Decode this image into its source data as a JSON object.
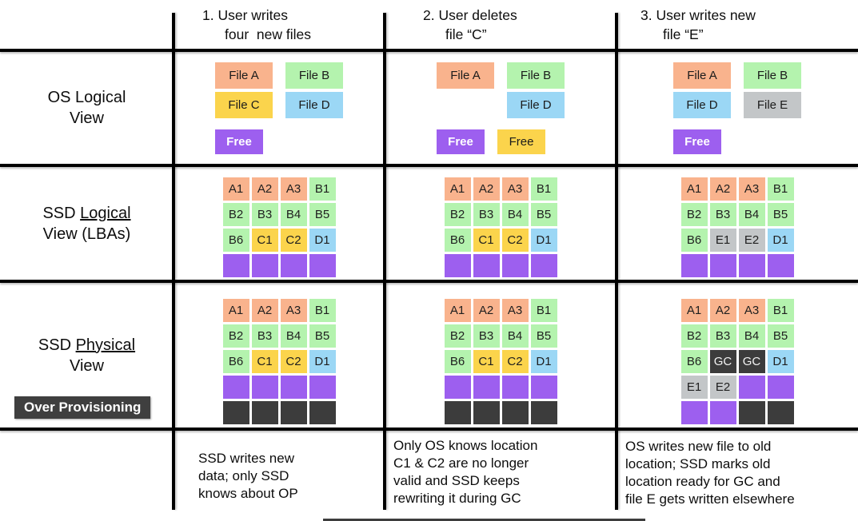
{
  "colors": {
    "salmon": "#F9B38D",
    "green": "#B4F3AE",
    "yellow": "#FBD44C",
    "blue": "#9BD7F5",
    "purple": "#9D5FEF",
    "gray": "#C3C6C8",
    "dark": "#3C3C3C",
    "none": "transparent"
  },
  "row_labels": {
    "os": {
      "line1": "OS Logical",
      "line2": "View"
    },
    "logical": {
      "prefix": "SSD ",
      "underlined": "Logical",
      "line2": "View (LBAs)"
    },
    "physical": {
      "prefix": "SSD ",
      "underlined": "Physical",
      "line2": "View"
    },
    "op_badge": "Over Provisioning"
  },
  "columns": [
    {
      "header": {
        "line1": "1. User writes",
        "line2": "four  new files"
      },
      "os_view": [
        {
          "gap_before": false,
          "chips": [
            {
              "label": "File A",
              "color": "salmon"
            },
            {
              "label": "File B",
              "color": "green"
            }
          ]
        },
        {
          "gap_before": false,
          "chips": [
            {
              "label": "File C",
              "color": "yellow"
            },
            {
              "label": "File D",
              "color": "blue"
            }
          ]
        },
        {
          "gap_before": true,
          "chips": [
            {
              "label": "Free",
              "color": "purple",
              "white": true,
              "bold": true
            }
          ]
        }
      ],
      "ssd_logical": [
        [
          {
            "t": "A1",
            "c": "salmon"
          },
          {
            "t": "A2",
            "c": "salmon"
          },
          {
            "t": "A3",
            "c": "salmon"
          },
          {
            "t": "B1",
            "c": "green"
          }
        ],
        [
          {
            "t": "B2",
            "c": "green"
          },
          {
            "t": "B3",
            "c": "green"
          },
          {
            "t": "B4",
            "c": "green"
          },
          {
            "t": "B5",
            "c": "green"
          }
        ],
        [
          {
            "t": "B6",
            "c": "green"
          },
          {
            "t": "C1",
            "c": "yellow"
          },
          {
            "t": "C2",
            "c": "yellow"
          },
          {
            "t": "D1",
            "c": "blue"
          }
        ],
        [
          {
            "t": "",
            "c": "purple"
          },
          {
            "t": "",
            "c": "purple"
          },
          {
            "t": "",
            "c": "purple"
          },
          {
            "t": "",
            "c": "purple"
          }
        ]
      ],
      "ssd_physical": [
        [
          {
            "t": "A1",
            "c": "salmon"
          },
          {
            "t": "A2",
            "c": "salmon"
          },
          {
            "t": "A3",
            "c": "salmon"
          },
          {
            "t": "B1",
            "c": "green"
          }
        ],
        [
          {
            "t": "B2",
            "c": "green"
          },
          {
            "t": "B3",
            "c": "green"
          },
          {
            "t": "B4",
            "c": "green"
          },
          {
            "t": "B5",
            "c": "green"
          }
        ],
        [
          {
            "t": "B6",
            "c": "green"
          },
          {
            "t": "C1",
            "c": "yellow"
          },
          {
            "t": "C2",
            "c": "yellow"
          },
          {
            "t": "D1",
            "c": "blue"
          }
        ],
        [
          {
            "t": "",
            "c": "purple"
          },
          {
            "t": "",
            "c": "purple"
          },
          {
            "t": "",
            "c": "purple"
          },
          {
            "t": "",
            "c": "purple"
          }
        ],
        [
          {
            "t": "",
            "c": "dark"
          },
          {
            "t": "",
            "c": "dark"
          },
          {
            "t": "",
            "c": "dark"
          },
          {
            "t": "",
            "c": "dark"
          }
        ]
      ],
      "caption": "SSD writes new\ndata; only SSD\nknows about OP"
    },
    {
      "header": {
        "line1": "2. User deletes",
        "line2": "file “C”"
      },
      "os_view": [
        {
          "gap_before": false,
          "chips": [
            {
              "label": "File A",
              "color": "salmon"
            },
            {
              "label": "File B",
              "color": "green"
            }
          ]
        },
        {
          "gap_before": false,
          "chips": [
            {
              "label": "",
              "color": "none"
            },
            {
              "label": "File D",
              "color": "blue"
            }
          ]
        },
        {
          "gap_before": true,
          "chips": [
            {
              "label": "Free",
              "color": "purple",
              "white": true,
              "bold": true
            },
            {
              "label": "Free",
              "color": "yellow"
            }
          ]
        }
      ],
      "ssd_logical": [
        [
          {
            "t": "A1",
            "c": "salmon"
          },
          {
            "t": "A2",
            "c": "salmon"
          },
          {
            "t": "A3",
            "c": "salmon"
          },
          {
            "t": "B1",
            "c": "green"
          }
        ],
        [
          {
            "t": "B2",
            "c": "green"
          },
          {
            "t": "B3",
            "c": "green"
          },
          {
            "t": "B4",
            "c": "green"
          },
          {
            "t": "B5",
            "c": "green"
          }
        ],
        [
          {
            "t": "B6",
            "c": "green"
          },
          {
            "t": "C1",
            "c": "yellow"
          },
          {
            "t": "C2",
            "c": "yellow"
          },
          {
            "t": "D1",
            "c": "blue"
          }
        ],
        [
          {
            "t": "",
            "c": "purple"
          },
          {
            "t": "",
            "c": "purple"
          },
          {
            "t": "",
            "c": "purple"
          },
          {
            "t": "",
            "c": "purple"
          }
        ]
      ],
      "ssd_physical": [
        [
          {
            "t": "A1",
            "c": "salmon"
          },
          {
            "t": "A2",
            "c": "salmon"
          },
          {
            "t": "A3",
            "c": "salmon"
          },
          {
            "t": "B1",
            "c": "green"
          }
        ],
        [
          {
            "t": "B2",
            "c": "green"
          },
          {
            "t": "B3",
            "c": "green"
          },
          {
            "t": "B4",
            "c": "green"
          },
          {
            "t": "B5",
            "c": "green"
          }
        ],
        [
          {
            "t": "B6",
            "c": "green"
          },
          {
            "t": "C1",
            "c": "yellow"
          },
          {
            "t": "C2",
            "c": "yellow"
          },
          {
            "t": "D1",
            "c": "blue"
          }
        ],
        [
          {
            "t": "",
            "c": "purple"
          },
          {
            "t": "",
            "c": "purple"
          },
          {
            "t": "",
            "c": "purple"
          },
          {
            "t": "",
            "c": "purple"
          }
        ],
        [
          {
            "t": "",
            "c": "dark"
          },
          {
            "t": "",
            "c": "dark"
          },
          {
            "t": "",
            "c": "dark"
          },
          {
            "t": "",
            "c": "dark"
          }
        ]
      ],
      "caption": "Only OS knows location\nC1 & C2 are no longer\nvalid and SSD keeps\nrewriting it during GC"
    },
    {
      "header": {
        "line1": "3. User writes new",
        "line2": "file “E”"
      },
      "os_view": [
        {
          "gap_before": false,
          "chips": [
            {
              "label": "File A",
              "color": "salmon"
            },
            {
              "label": "File B",
              "color": "green"
            }
          ]
        },
        {
          "gap_before": false,
          "chips": [
            {
              "label": "File D",
              "color": "blue"
            },
            {
              "label": "File E",
              "color": "gray"
            }
          ]
        },
        {
          "gap_before": true,
          "chips": [
            {
              "label": "Free",
              "color": "purple",
              "white": true,
              "bold": true
            }
          ]
        }
      ],
      "ssd_logical": [
        [
          {
            "t": "A1",
            "c": "salmon"
          },
          {
            "t": "A2",
            "c": "salmon"
          },
          {
            "t": "A3",
            "c": "salmon"
          },
          {
            "t": "B1",
            "c": "green"
          }
        ],
        [
          {
            "t": "B2",
            "c": "green"
          },
          {
            "t": "B3",
            "c": "green"
          },
          {
            "t": "B4",
            "c": "green"
          },
          {
            "t": "B5",
            "c": "green"
          }
        ],
        [
          {
            "t": "B6",
            "c": "green"
          },
          {
            "t": "E1",
            "c": "gray"
          },
          {
            "t": "E2",
            "c": "gray"
          },
          {
            "t": "D1",
            "c": "blue"
          }
        ],
        [
          {
            "t": "",
            "c": "purple"
          },
          {
            "t": "",
            "c": "purple"
          },
          {
            "t": "",
            "c": "purple"
          },
          {
            "t": "",
            "c": "purple"
          }
        ]
      ],
      "ssd_physical": [
        [
          {
            "t": "A1",
            "c": "salmon"
          },
          {
            "t": "A2",
            "c": "salmon"
          },
          {
            "t": "A3",
            "c": "salmon"
          },
          {
            "t": "B1",
            "c": "green"
          }
        ],
        [
          {
            "t": "B2",
            "c": "green"
          },
          {
            "t": "B3",
            "c": "green"
          },
          {
            "t": "B4",
            "c": "green"
          },
          {
            "t": "B5",
            "c": "green"
          }
        ],
        [
          {
            "t": "B6",
            "c": "green"
          },
          {
            "t": "GC",
            "c": "dark",
            "white": true
          },
          {
            "t": "GC",
            "c": "dark",
            "white": true
          },
          {
            "t": "D1",
            "c": "blue"
          }
        ],
        [
          {
            "t": "E1",
            "c": "gray"
          },
          {
            "t": "E2",
            "c": "gray"
          },
          {
            "t": "",
            "c": "purple"
          },
          {
            "t": "",
            "c": "purple"
          }
        ],
        [
          {
            "t": "",
            "c": "purple"
          },
          {
            "t": "",
            "c": "purple"
          },
          {
            "t": "",
            "c": "dark"
          },
          {
            "t": "",
            "c": "dark"
          }
        ]
      ],
      "caption": "OS writes new file to old\nlocation; SSD marks old\nlocation ready for GC and\nfile E gets written elsewhere"
    }
  ]
}
